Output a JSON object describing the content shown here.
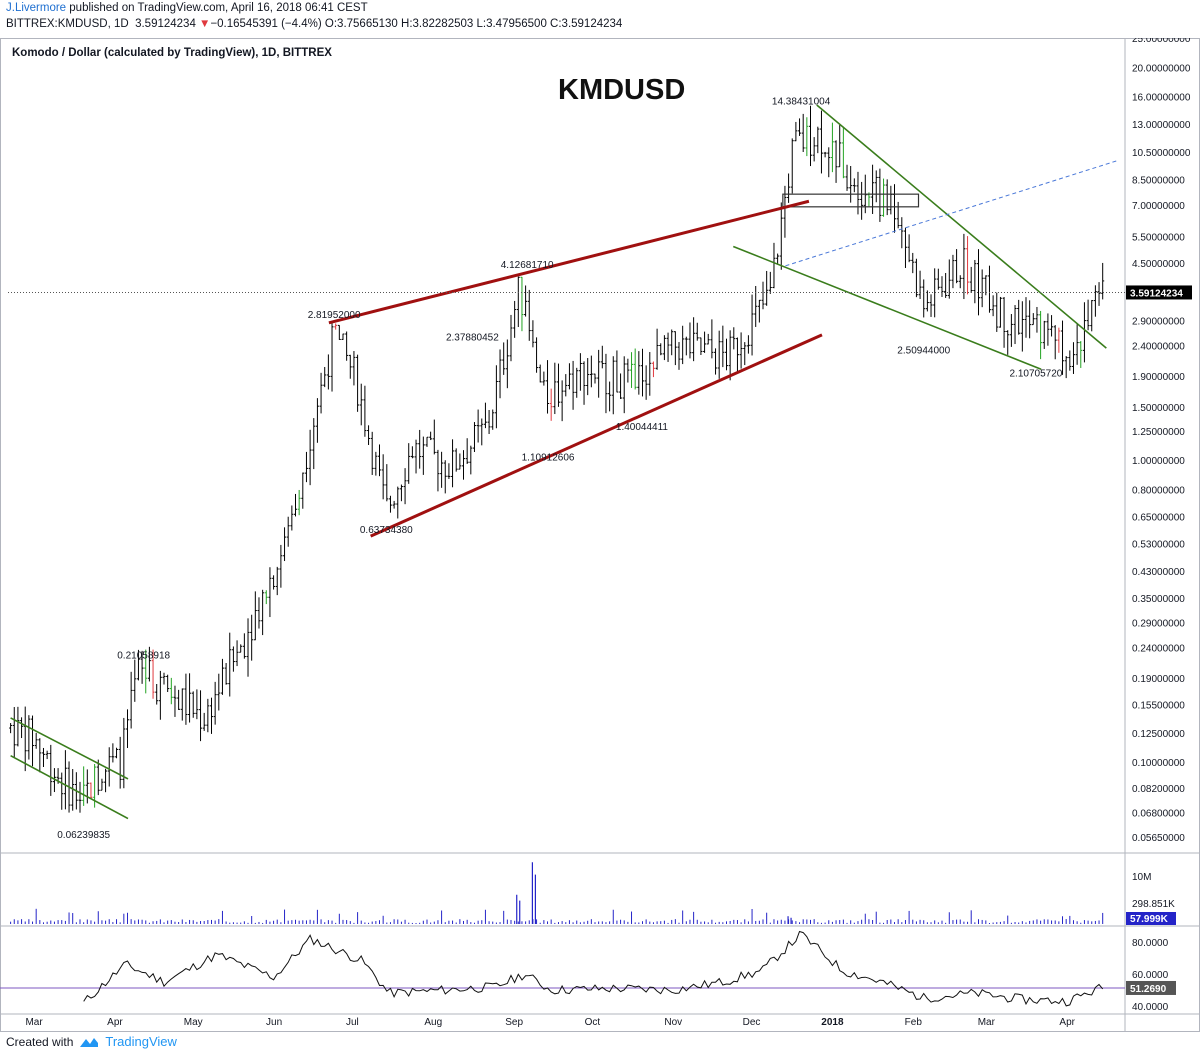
{
  "header": {
    "author": "J.Livermore",
    "published": "published on TradingView.com, April 16, 2018 06:41 CEST"
  },
  "symbol_bar": {
    "ticker": "BITTREX:KMDUSD, 1D",
    "last": "3.59124234",
    "change": "−0.16545391 (−4.4%)",
    "open_label": "O:",
    "open": "3.75665130",
    "high_label": "H:",
    "high": "3.82282503",
    "low_label": "L:",
    "low": "3.47956500",
    "close_label": "C:",
    "close": "3.59124234"
  },
  "footer": {
    "created_with": "Created with",
    "brand": "TradingView"
  },
  "colors": {
    "bar": "#000000",
    "bar_up": "#22a322",
    "bar_down": "#e0393e",
    "channel_red": "#a01010",
    "channel_green": "#3a7d1c",
    "dashed_line": "#4a78d8",
    "volume": "#2424c8",
    "rsi_level": "#7e57c2",
    "last_price_bg": "#000000"
  },
  "chart_data": [
    {
      "type": "line",
      "title": "Komodo / Dollar (calculated by TradingView), 1D, BITTREX",
      "annotation_title": "KMDUSD",
      "y_scale": "log",
      "ylim": [
        0.05,
        25
      ],
      "x_ticks": [
        "Mar",
        "Apr",
        "May",
        "Jun",
        "Jul",
        "Aug",
        "Sep",
        "Oct",
        "Nov",
        "Dec",
        "2018",
        "Feb",
        "Mar",
        "Apr"
      ],
      "y_ticks": [
        25,
        20,
        16,
        13,
        10.5,
        8.5,
        7,
        5.5,
        4.5,
        3.6,
        2.9,
        2.4,
        1.9,
        1.5,
        1.25,
        1.0,
        0.8,
        0.65,
        0.53,
        0.43,
        0.35,
        0.29,
        0.24,
        0.19,
        0.155,
        0.125,
        0.1,
        0.082,
        0.068,
        0.0565
      ],
      "y_tick_labels": [
        "25.00000000",
        "20.00000000",
        "16.00000000",
        "13.00000000",
        "10.50000000",
        "8.50000000",
        "7.00000000",
        "5.50000000",
        "4.50000000",
        "3.60000000",
        "2.90000000",
        "2.40000000",
        "1.90000000",
        "1.50000000",
        "1.25000000",
        "1.00000000",
        "0.80000000",
        "0.65000000",
        "0.53000000",
        "0.43000000",
        "0.35000000",
        "0.29000000",
        "0.24000000",
        "0.19000000",
        "0.15500000",
        "0.12500000",
        "0.10000000",
        "0.08200000",
        "0.06800000",
        "0.05650000"
      ],
      "last_price": 3.59124234,
      "last_price_label": "3.59124234",
      "series": [
        {
          "x": [
            "2017-02-20",
            "2017-03-01",
            "2017-03-10",
            "2017-03-19",
            "2017-03-27",
            "2017-04-03",
            "2017-04-10",
            "2017-04-22",
            "2017-05-05",
            "2017-05-20",
            "2017-06-05",
            "2017-06-18",
            "2017-06-24",
            "2017-07-02",
            "2017-07-14",
            "2017-07-24",
            "2017-08-08",
            "2017-08-22",
            "2017-09-03",
            "2017-09-12",
            "2017-09-28",
            "2017-10-15",
            "2017-11-02",
            "2017-11-22",
            "2017-12-08",
            "2017-12-17",
            "2017-12-27",
            "2018-01-12",
            "2018-01-25",
            "2018-02-05",
            "2018-02-20",
            "2018-03-07",
            "2018-03-22",
            "2018-04-03",
            "2018-04-15"
          ],
          "values": [
            0.13,
            0.12,
            0.09,
            0.075,
            0.095,
            0.1,
            0.2,
            0.17,
            0.14,
            0.25,
            0.52,
            1.6,
            2.6,
            1.9,
            0.68,
            1.1,
            0.95,
            1.3,
            3.7,
            1.6,
            2.0,
            1.8,
            2.4,
            2.2,
            3.5,
            11,
            12,
            8.0,
            7.0,
            3.2,
            4.5,
            3.0,
            2.7,
            2.3,
            3.59
          ]
        }
      ],
      "annotations": [
        {
          "label": "0.06239835",
          "x": "2017-03-20",
          "value": 0.0624
        },
        {
          "label": "0.21058918",
          "x": "2017-04-12",
          "value": 0.2106
        },
        {
          "label": "2.81952000",
          "x": "2017-06-24",
          "value": 2.8195
        },
        {
          "label": "0.63734380",
          "x": "2017-07-14",
          "value": 0.6373
        },
        {
          "label": "2.37880452",
          "x": "2017-08-16",
          "value": 2.3788
        },
        {
          "label": "4.12681710",
          "x": "2017-09-06",
          "value": 4.1268
        },
        {
          "label": "1.10912606",
          "x": "2017-09-14",
          "value": 1.1091
        },
        {
          "label": "1.40044411",
          "x": "2017-10-20",
          "value": 1.4004
        },
        {
          "label": "14.38431004",
          "x": "2017-12-20",
          "value": 14.3843
        },
        {
          "label": "2.50944000",
          "x": "2018-02-05",
          "value": 2.5094
        },
        {
          "label": "2.10705720",
          "x": "2018-03-20",
          "value": 2.1071
        }
      ],
      "trendlines": [
        {
          "color": "channel_red",
          "from": [
            "2017-06-22",
            2.85
          ],
          "to": [
            "2017-12-23",
            7.2
          ]
        },
        {
          "color": "channel_red",
          "from": [
            "2017-07-08",
            0.56
          ],
          "to": [
            "2017-12-28",
            2.6
          ]
        },
        {
          "color": "channel_green",
          "from": [
            "2017-12-26",
            15
          ],
          "to": [
            "2018-04-16",
            2.35
          ]
        },
        {
          "color": "channel_green",
          "from": [
            "2017-11-24",
            5.1
          ],
          "to": [
            "2018-03-22",
            2.0
          ]
        },
        {
          "color": "channel_green",
          "from": [
            "2017-02-20",
            0.14
          ],
          "to": [
            "2017-04-06",
            0.088
          ]
        },
        {
          "color": "channel_green",
          "from": [
            "2017-02-20",
            0.105
          ],
          "to": [
            "2017-04-06",
            0.065
          ]
        },
        {
          "color": "dashed_line",
          "from": [
            "2017-12-14",
            4.4
          ],
          "to": [
            "2018-04-20",
            9.8
          ]
        }
      ],
      "grid": false
    },
    {
      "type": "bar",
      "name": "Volume",
      "y_tick_labels": [
        "10M",
        "298.851K"
      ],
      "last_value_label": "57.999K",
      "x": [
        "2017-03",
        "2017-04",
        "2017-05",
        "2017-06",
        "2017-07",
        "2017-08",
        "2017-09-02",
        "2017-09-08",
        "2017-10",
        "2017-11",
        "2017-12",
        "2018-01",
        "2018-02",
        "2018-03",
        "2018-04"
      ],
      "values": [
        0.3,
        0.5,
        0.35,
        0.5,
        0.3,
        0.6,
        4.5,
        9.5,
        0.4,
        0.45,
        1.2,
        0.7,
        0.4,
        0.3,
        0.3
      ],
      "unit": "M"
    },
    {
      "type": "line",
      "name": "RSI",
      "y_tick_labels": [
        "80.0000",
        "60.0000",
        "40.0000"
      ],
      "ylim": [
        35,
        90
      ],
      "current_value_label": "51.2690",
      "level": 51.269,
      "x": [
        "2017-03-20",
        "2017-04-05",
        "2017-04-20",
        "2017-05-10",
        "2017-06-01",
        "2017-06-15",
        "2017-07-05",
        "2017-07-15",
        "2017-08-05",
        "2017-08-25",
        "2017-09-05",
        "2017-09-15",
        "2017-10-10",
        "2017-11-01",
        "2017-11-20",
        "2017-12-05",
        "2017-12-20",
        "2018-01-05",
        "2018-01-20",
        "2018-02-05",
        "2018-02-25",
        "2018-03-15",
        "2018-04-01",
        "2018-04-15"
      ],
      "values": [
        42,
        66,
        55,
        72,
        58,
        82,
        68,
        48,
        50,
        52,
        60,
        50,
        51,
        50,
        55,
        62,
        85,
        62,
        55,
        45,
        48,
        44,
        43,
        52
      ]
    }
  ]
}
